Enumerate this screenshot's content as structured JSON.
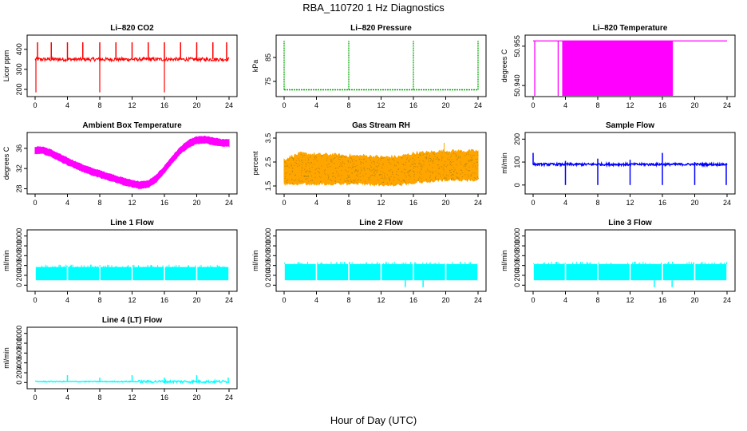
{
  "figure": {
    "title": "RBA_110720  1 Hz Diagnostics",
    "xlabel": "Hour of Day (UTC)"
  },
  "chart_data": [
    {
      "type": "line",
      "title": "Li–820 CO2",
      "ylabel": "Licor ppm",
      "color": "#ff0000",
      "xlim": [
        0,
        24
      ],
      "ylim": [
        180,
        455
      ],
      "xticks": [
        "0",
        "4",
        "8",
        "12",
        "16",
        "20",
        "24"
      ],
      "yticks": [
        "200",
        "300",
        "400"
      ],
      "baseline": 350,
      "spikes_up": [
        0.3,
        2.0,
        4.0,
        5.9,
        8.0,
        10.0,
        12.0,
        14.0,
        16.0,
        18.0,
        20.0,
        22.0,
        23.7
      ],
      "spikes_up_value": 435,
      "spikes_down": [
        0.1,
        8.0,
        16.0
      ],
      "spikes_down_value": 185
    },
    {
      "type": "line",
      "title": "Li–820 Pressure",
      "ylabel": "kPa",
      "color": "#00aa00",
      "xlim": [
        0,
        24
      ],
      "ylim": [
        70,
        93
      ],
      "xticks": [
        "0",
        "4",
        "8",
        "12",
        "16",
        "20",
        "24"
      ],
      "yticks": [
        "75",
        "85"
      ],
      "baseline": 71.5,
      "spikes_up": [
        0.0,
        8.0,
        16.0,
        24.0
      ],
      "spikes_up_value": 92
    },
    {
      "type": "line",
      "title": "Li–820 Temperature",
      "ylabel": "degrees C",
      "color": "#ff00ff",
      "xlim": [
        0,
        24
      ],
      "ylim": [
        50.937,
        50.958
      ],
      "xticks": [
        "0",
        "4",
        "8",
        "12",
        "16",
        "20",
        "24"
      ],
      "yticks": [
        "50.940",
        "50.955"
      ],
      "high_value": 50.957,
      "low_value": 50.937,
      "dense_band": [
        3.6,
        17.3
      ],
      "isolated_drops": [
        0.2,
        3.1,
        4.1,
        4.6,
        5.0
      ]
    },
    {
      "type": "line",
      "title": "Ambient Box Temperature",
      "ylabel": "degrees C",
      "color": "#ff00ff",
      "xlim": [
        0,
        24
      ],
      "ylim": [
        27.6,
        38.5
      ],
      "xticks": [
        "0",
        "4",
        "8",
        "12",
        "16",
        "20",
        "24"
      ],
      "yticks": [
        "28",
        "32",
        "36"
      ],
      "x": [
        0,
        1,
        2,
        3,
        4,
        5,
        6,
        7,
        8,
        9,
        10,
        11,
        12,
        13,
        14,
        15,
        16,
        17,
        18,
        19,
        20,
        21,
        22,
        23,
        24
      ],
      "y": [
        35.6,
        35.6,
        35.0,
        34.2,
        33.4,
        32.7,
        32.0,
        31.4,
        30.9,
        30.4,
        29.9,
        29.4,
        29.0,
        28.7,
        28.9,
        30.0,
        31.8,
        33.8,
        35.6,
        36.9,
        37.6,
        37.7,
        37.4,
        37.1,
        37.1
      ],
      "band_halfwidth": 0.55
    },
    {
      "type": "line",
      "title": "Gas Stream RH",
      "ylabel": "percent",
      "color": "#ffa500",
      "color2": "#b8860b",
      "xlim": [
        0,
        24
      ],
      "ylim": [
        1.3,
        3.6
      ],
      "xticks": [
        "0",
        "4",
        "8",
        "12",
        "16",
        "20",
        "24"
      ],
      "yticks": [
        "1.5",
        "2.5",
        "3.5"
      ],
      "x": [
        0,
        2,
        4,
        6,
        8,
        10,
        12,
        14,
        16,
        18,
        20,
        22,
        24
      ],
      "upper": [
        2.6,
        2.85,
        2.8,
        2.8,
        2.75,
        2.75,
        2.7,
        2.7,
        2.85,
        2.9,
        2.95,
        2.95,
        2.95
      ],
      "lower": [
        1.6,
        1.6,
        1.6,
        1.6,
        1.6,
        1.6,
        1.55,
        1.55,
        1.65,
        1.7,
        1.75,
        1.75,
        1.75
      ],
      "spike_max": 3.3
    },
    {
      "type": "line",
      "title": "Sample Flow",
      "ylabel": "ml/min",
      "color": "#0000ff",
      "xlim": [
        0,
        24
      ],
      "ylim": [
        -25,
        215
      ],
      "xticks": [
        "0",
        "4",
        "8",
        "12",
        "16",
        "20",
        "24"
      ],
      "yticks": [
        "0",
        "100",
        "200"
      ],
      "baseline": 90,
      "spikes_up": [
        0.0,
        4.0,
        8.0,
        12.0,
        16.0,
        20.0
      ],
      "spikes_up_values": [
        140,
        105,
        115,
        110,
        140,
        100
      ],
      "spikes_down": [
        4.0,
        8.0,
        12.0,
        16.0,
        20.0,
        23.9
      ],
      "spikes_down_value": 0
    },
    {
      "type": "line",
      "title": "Line 1 Flow",
      "ylabel": "ml/min",
      "color": "#00ffff",
      "xlim": [
        0,
        24
      ],
      "ylim": [
        -60,
        1060
      ],
      "xticks": [
        "0",
        "4",
        "8",
        "12",
        "16",
        "20",
        "24"
      ],
      "yticks": [
        "0",
        "200",
        "400",
        "600",
        "800",
        "1000"
      ],
      "band_top": 370,
      "band_bottom": 100,
      "gaps": [
        4.0,
        8.0,
        12.0,
        16.0,
        20.0
      ],
      "dips": []
    },
    {
      "type": "line",
      "title": "Line 2 Flow",
      "ylabel": "ml/min",
      "color": "#00ffff",
      "xlim": [
        0,
        24
      ],
      "ylim": [
        -60,
        1060
      ],
      "xticks": [
        "0",
        "4",
        "8",
        "12",
        "16",
        "20",
        "24"
      ],
      "yticks": [
        "0",
        "200",
        "400",
        "600",
        "800",
        "1000"
      ],
      "band_top": 430,
      "band_bottom": 100,
      "gaps": [
        4.0,
        8.0,
        12.0,
        16.0,
        20.0
      ],
      "dips": [
        15.0,
        17.2
      ]
    },
    {
      "type": "line",
      "title": "Line 3 Flow",
      "ylabel": "ml/min",
      "color": "#00ffff",
      "xlim": [
        0,
        24
      ],
      "ylim": [
        -60,
        1060
      ],
      "xticks": [
        "0",
        "4",
        "8",
        "12",
        "16",
        "20",
        "24"
      ],
      "yticks": [
        "0",
        "200",
        "400",
        "600",
        "800",
        "1000"
      ],
      "band_top": 430,
      "band_bottom": 100,
      "gaps": [
        4.0,
        8.0,
        12.0,
        16.0,
        20.0
      ],
      "dips": [
        15.0,
        17.2
      ]
    },
    {
      "type": "line",
      "title": "Line 4 (LT) Flow",
      "ylabel": "ml/min",
      "color": "#00ffff",
      "xlim": [
        0,
        24
      ],
      "ylim": [
        -60,
        1060
      ],
      "xticks": [
        "0",
        "4",
        "8",
        "12",
        "16",
        "20",
        "24"
      ],
      "yticks": [
        "0",
        "200",
        "400",
        "600",
        "800",
        "1000"
      ],
      "baseline": 20,
      "spikes_up": [
        4.0,
        8.0,
        12.0,
        16.0,
        20.0,
        23.9
      ],
      "spikes_up_values": [
        150,
        100,
        150,
        100,
        150,
        100
      ]
    }
  ]
}
